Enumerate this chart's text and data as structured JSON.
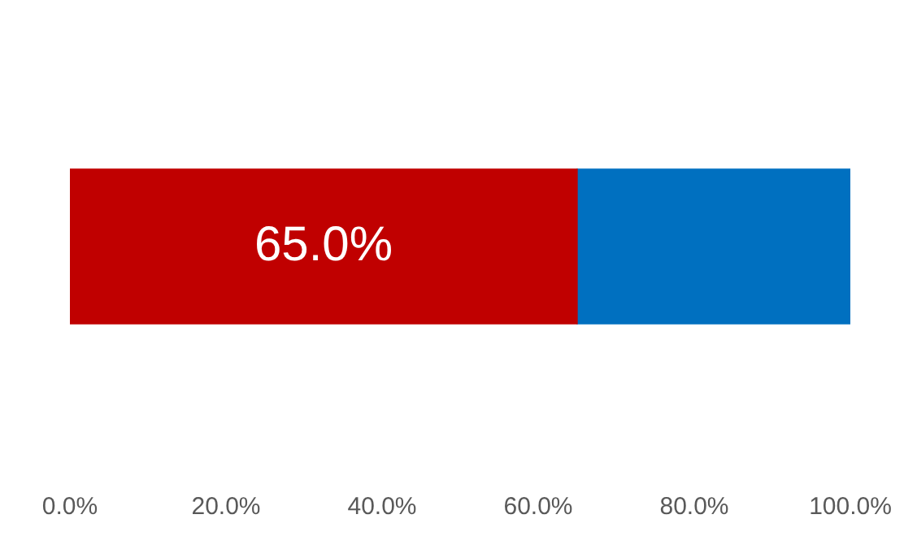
{
  "chart_data": {
    "type": "bar",
    "orientation": "horizontal",
    "stacked": true,
    "categories": [
      null
    ],
    "series": [
      {
        "color": "#c00000",
        "values": [
          65
        ],
        "value_labels": [
          "65.0%"
        ]
      },
      {
        "color": "#0070c0",
        "values": [
          35
        ],
        "value_labels": [
          null
        ]
      }
    ],
    "xlim": [
      0,
      100
    ],
    "xticks": [
      {
        "value": 0,
        "label": "0.0%"
      },
      {
        "value": 20,
        "label": "20.0%"
      },
      {
        "value": 40,
        "label": "40.0%"
      },
      {
        "value": 60,
        "label": "60.0%"
      },
      {
        "value": 80,
        "label": "80.0%"
      },
      {
        "value": 100,
        "label": "100.0%"
      }
    ],
    "grid": false,
    "legend": false
  }
}
